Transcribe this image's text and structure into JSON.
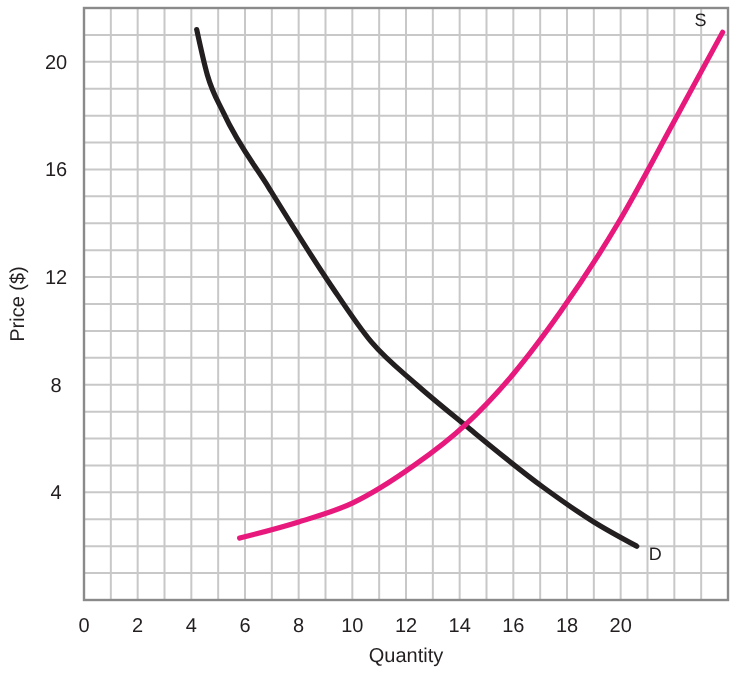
{
  "chart_data": {
    "type": "line",
    "xlabel": "Quantity",
    "ylabel": "Price ($)",
    "xlim": [
      0,
      24
    ],
    "ylim": [
      0,
      22
    ],
    "xticks": [
      0,
      {
        "value": 1,
        "label": null
      },
      2,
      {
        "value": 3,
        "label": null
      },
      4,
      {
        "value": 5,
        "label": null
      },
      6,
      {
        "value": 7,
        "label": null
      },
      8,
      {
        "value": 9,
        "label": null
      },
      10,
      {
        "value": 11,
        "label": null
      },
      12,
      {
        "value": 13,
        "label": null
      },
      14,
      {
        "value": 15,
        "label": null
      },
      16,
      {
        "value": 17,
        "label": null
      },
      18,
      {
        "value": 19,
        "label": null
      },
      20,
      {
        "value": 21,
        "label": null
      },
      {
        "value": 22,
        "label": null
      },
      {
        "value": 23,
        "label": null
      },
      {
        "value": 24,
        "label": null
      }
    ],
    "yticks": [
      {
        "value": 0,
        "label": null
      },
      {
        "value": 1,
        "label": null
      },
      {
        "value": 2,
        "label": null
      },
      {
        "value": 3,
        "label": null
      },
      4,
      {
        "value": 5,
        "label": null
      },
      {
        "value": 6,
        "label": null
      },
      {
        "value": 7,
        "label": null
      },
      8,
      {
        "value": 9,
        "label": null
      },
      {
        "value": 10,
        "label": null
      },
      {
        "value": 11,
        "label": null
      },
      12,
      {
        "value": 13,
        "label": null
      },
      {
        "value": 14,
        "label": null
      },
      {
        "value": 15,
        "label": null
      },
      16,
      {
        "value": 17,
        "label": null
      },
      {
        "value": 18,
        "label": null
      },
      {
        "value": 19,
        "label": null
      },
      20,
      {
        "value": 21,
        "label": null
      },
      {
        "value": 22,
        "label": null
      }
    ],
    "grid": true,
    "marker": "none",
    "line_style": "solid",
    "series": [
      {
        "name": "D",
        "color": "#231f20",
        "x": [
          4.2,
          4.6,
          5.2,
          6.9,
          9.2,
          10.7,
          12.4,
          14.2,
          17.1,
          19,
          20.6
        ],
        "values": [
          21.2,
          19.5,
          18.1,
          15.3,
          11.7,
          9.6,
          8.0,
          6.5,
          4.2,
          2.9,
          2.0
        ]
      },
      {
        "name": "S",
        "color": "#e8197d",
        "x": [
          5.8,
          8,
          10,
          12.3,
          14.2,
          16,
          17.75,
          19.9,
          22,
          23.8
        ],
        "values": [
          2.3,
          2.9,
          3.6,
          5.0,
          6.5,
          8.4,
          10.7,
          14.0,
          17.8,
          21.1
        ]
      }
    ]
  }
}
